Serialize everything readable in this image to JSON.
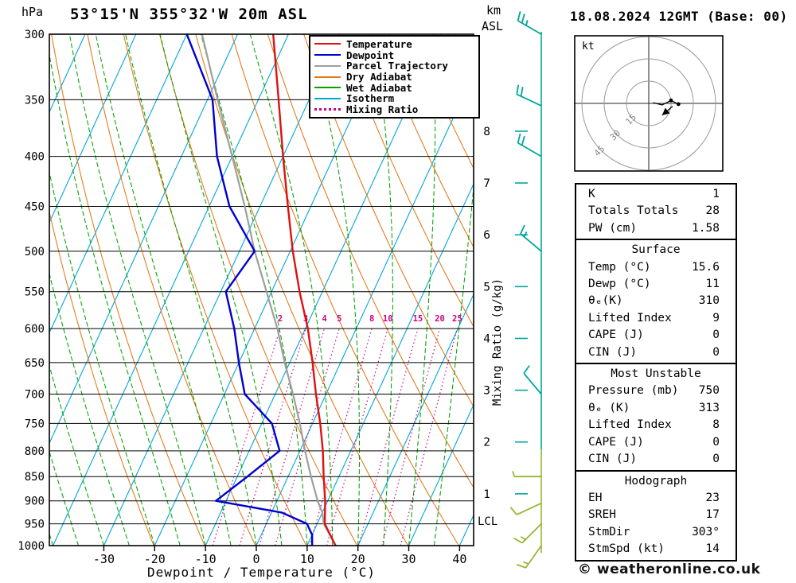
{
  "header": {
    "station": "53°15'N 355°32'W 20m ASL",
    "datetime": "18.08.2024 12GMT (Base: 00)",
    "pressure_unit": "hPa",
    "km_label": "km",
    "asl_label": "ASL"
  },
  "legend": [
    {
      "label": "Temperature",
      "color": "#dd1111",
      "style": "solid"
    },
    {
      "label": "Dewpoint",
      "color": "#0000cc",
      "style": "solid"
    },
    {
      "label": "Parcel Trajectory",
      "color": "#9e9e9e",
      "style": "solid"
    },
    {
      "label": "Dry Adiabat",
      "color": "#e07818",
      "style": "solid"
    },
    {
      "label": "Wet Adiabat",
      "color": "#00a300",
      "style": "solid"
    },
    {
      "label": "Isotherm",
      "color": "#00a6d8",
      "style": "solid"
    },
    {
      "label": "Mixing Ratio",
      "color": "#cc0088",
      "style": "dotted"
    }
  ],
  "colors": {
    "temperature": "#dd1111",
    "dewpoint": "#0000cc",
    "parcel": "#9e9e9e",
    "dry_adiabat": "#e07818",
    "wet_adiabat": "#00a300",
    "isotherm": "#00a6d8",
    "mixing_ratio": "#cc0088",
    "wind_upper": "#00a79b",
    "wind_lower": "#94b832",
    "km_axis": "#00a79b"
  },
  "chart_data": {
    "type": "skew_t_log_p",
    "xlabel": "Dewpoint / Temperature (°C)",
    "x_ticks": [
      -30,
      -20,
      -10,
      0,
      10,
      20,
      30,
      40
    ],
    "pressure_levels": [
      300,
      350,
      400,
      450,
      500,
      550,
      600,
      650,
      700,
      750,
      800,
      850,
      900,
      950,
      1000
    ],
    "km_ticks": [
      1,
      2,
      3,
      4,
      5,
      6,
      7,
      8
    ],
    "lcl_label": "LCL",
    "lcl_pressure_hpa": 944,
    "mixing_ratio_axis_label": "Mixing Ratio (g/kg)",
    "mixing_ratio_values": [
      2,
      3,
      4,
      5,
      8,
      10,
      15,
      20,
      25
    ],
    "temperature_profile_p_c": [
      [
        1000,
        15.6
      ],
      [
        950,
        11.5
      ],
      [
        900,
        9.5
      ],
      [
        850,
        7
      ],
      [
        800,
        4.5
      ],
      [
        750,
        1.5
      ],
      [
        700,
        -2
      ],
      [
        650,
        -5.5
      ],
      [
        600,
        -9.5
      ],
      [
        550,
        -14.5
      ],
      [
        500,
        -19.5
      ],
      [
        450,
        -24.5
      ],
      [
        400,
        -30
      ],
      [
        350,
        -36
      ],
      [
        300,
        -43
      ]
    ],
    "dewpoint_profile_p_c": [
      [
        1000,
        11
      ],
      [
        975,
        10
      ],
      [
        950,
        8
      ],
      [
        925,
        2
      ],
      [
        900,
        -12
      ],
      [
        850,
        -8
      ],
      [
        800,
        -4
      ],
      [
        750,
        -8
      ],
      [
        700,
        -16
      ],
      [
        650,
        -20
      ],
      [
        600,
        -24
      ],
      [
        550,
        -29
      ],
      [
        500,
        -27
      ],
      [
        450,
        -36
      ],
      [
        400,
        -43
      ],
      [
        350,
        -49
      ],
      [
        300,
        -60
      ]
    ],
    "parcel_profile_p_c": [
      [
        1000,
        15.6
      ],
      [
        950,
        11.3
      ],
      [
        925,
        10
      ],
      [
        900,
        8
      ],
      [
        850,
        4.5
      ],
      [
        800,
        1
      ],
      [
        750,
        -2.5
      ],
      [
        700,
        -6.5
      ],
      [
        650,
        -11
      ],
      [
        600,
        -15.5
      ],
      [
        550,
        -21
      ],
      [
        500,
        -27
      ],
      [
        450,
        -33
      ],
      [
        400,
        -40
      ],
      [
        350,
        -48
      ],
      [
        300,
        -57
      ]
    ],
    "wind_barbs": [
      {
        "p": 300,
        "dir": 300,
        "speed_kt": 25,
        "color": "#00a79b"
      },
      {
        "p": 355,
        "dir": 295,
        "speed_kt": 20,
        "color": "#00a79b"
      },
      {
        "p": 400,
        "dir": 300,
        "speed_kt": 20,
        "color": "#00a79b"
      },
      {
        "p": 500,
        "dir": 310,
        "speed_kt": 15,
        "color": "#00a79b"
      },
      {
        "p": 700,
        "dir": 320,
        "speed_kt": 10,
        "color": "#00a79b"
      },
      {
        "p": 850,
        "dir": 270,
        "speed_kt": 5,
        "color": "#94b832"
      },
      {
        "p": 905,
        "dir": 245,
        "speed_kt": 10,
        "color": "#94b832"
      },
      {
        "p": 950,
        "dir": 225,
        "speed_kt": 15,
        "color": "#94b832"
      },
      {
        "p": 1000,
        "dir": 215,
        "speed_kt": 15,
        "color": "#94b832"
      }
    ]
  },
  "hodograph": {
    "unit_label": "kt",
    "rings_kt": [
      15,
      30,
      45
    ],
    "ring_labels": [
      "15",
      "30",
      "45"
    ],
    "trace_kt": [
      [
        20,
        -0.5
      ],
      [
        15,
        2
      ],
      [
        9,
        -1
      ],
      [
        3,
        0.5
      ]
    ],
    "dots_kt": [
      [
        20,
        -0.5
      ],
      [
        15,
        2
      ]
    ],
    "arrow_from_kt": [
      16,
      -2
    ],
    "arrow_to_kt": [
      9,
      -8
    ]
  },
  "indices": {
    "general": {
      "rows": [
        {
          "label": "K",
          "value": "1"
        },
        {
          "label": "Totals Totals",
          "value": "28"
        },
        {
          "label": "PW (cm)",
          "value": "1.58"
        }
      ]
    },
    "surface": {
      "title": "Surface",
      "rows": [
        {
          "label": "Temp (°C)",
          "value": "15.6"
        },
        {
          "label": "Dewp (°C)",
          "value": "11"
        },
        {
          "label": "θₑ(K)",
          "value": "310"
        },
        {
          "label": "Lifted Index",
          "value": "9"
        },
        {
          "label": "CAPE (J)",
          "value": "0"
        },
        {
          "label": "CIN (J)",
          "value": "0"
        }
      ]
    },
    "most_unstable": {
      "title": "Most Unstable",
      "rows": [
        {
          "label": "Pressure (mb)",
          "value": "750"
        },
        {
          "label": "θₑ (K)",
          "value": "313"
        },
        {
          "label": "Lifted Index",
          "value": "8"
        },
        {
          "label": "CAPE (J)",
          "value": "0"
        },
        {
          "label": "CIN (J)",
          "value": "0"
        }
      ]
    },
    "hodograph_indices": {
      "title": "Hodograph",
      "rows": [
        {
          "label": "EH",
          "value": "23"
        },
        {
          "label": "SREH",
          "value": "17"
        },
        {
          "label": "StmDir",
          "value": "303°"
        },
        {
          "label": "StmSpd (kt)",
          "value": "14"
        }
      ]
    }
  },
  "footer": {
    "copyright": "© weatheronline.co.uk"
  }
}
